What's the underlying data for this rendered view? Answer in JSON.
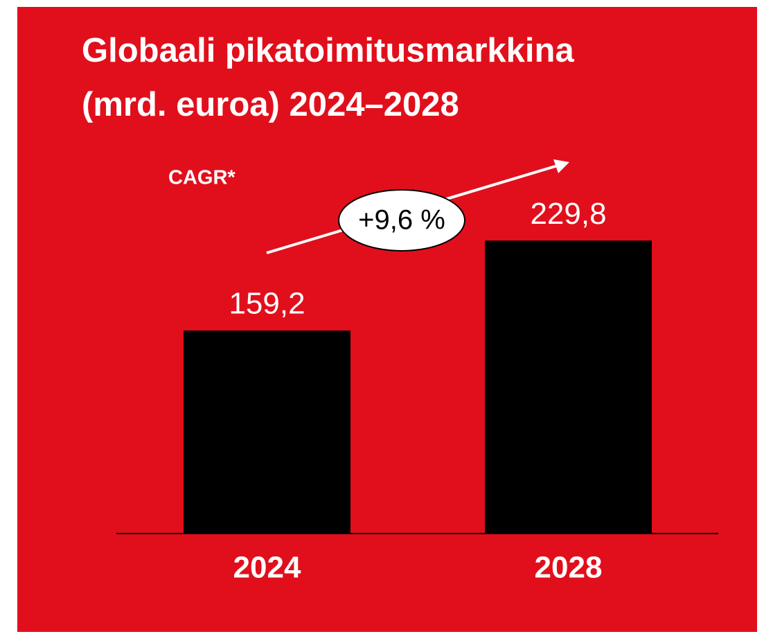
{
  "chart_data": {
    "type": "bar",
    "title": [
      "Globaali pikatoimitusmarkkina",
      "(mrd. euroa) 2024–2028"
    ],
    "annotations": {
      "label": "CAGR*",
      "growth": "+9,6 %"
    },
    "categories": [
      "2024",
      "2028"
    ],
    "values": [
      159.2,
      229.8
    ],
    "value_labels": [
      "159,2",
      "229,8"
    ],
    "color": "#000000",
    "background": "#e10f1c",
    "ylim": [
      0,
      250
    ]
  }
}
